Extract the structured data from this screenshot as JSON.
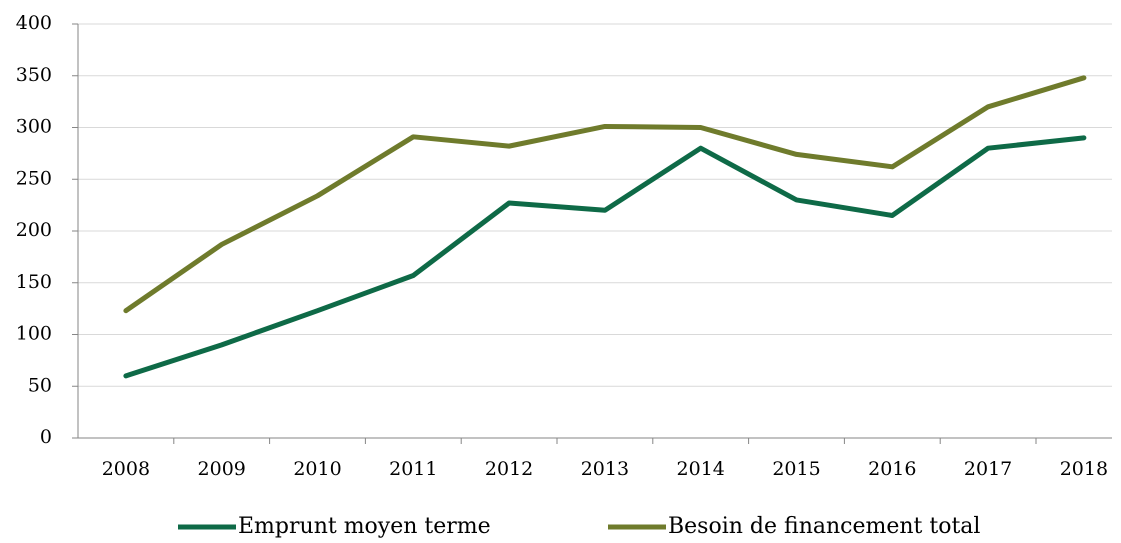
{
  "chart_data": {
    "type": "line",
    "categories": [
      "2008",
      "2009",
      "2010",
      "2011",
      "2012",
      "2013",
      "2014",
      "2015",
      "2016",
      "2017",
      "2018"
    ],
    "series": [
      {
        "name": "Emprunt moyen terme",
        "color": "#0e6a47",
        "values": [
          60,
          90,
          123,
          157,
          227,
          220,
          280,
          230,
          215,
          280,
          290
        ]
      },
      {
        "name": "Besoin de financement total",
        "color": "#6f7b2c",
        "values": [
          123,
          187,
          234,
          291,
          282,
          301,
          300,
          274,
          262,
          320,
          348
        ]
      }
    ],
    "ylim": [
      0,
      400
    ],
    "yticks": [
      0,
      50,
      100,
      150,
      200,
      250,
      300,
      350,
      400
    ],
    "grid": true,
    "legend": "bottom"
  }
}
